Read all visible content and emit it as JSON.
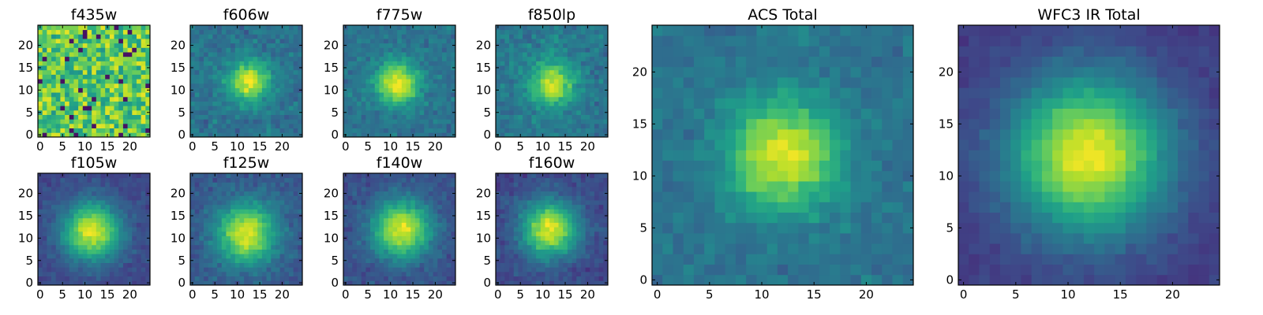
{
  "chart_data": [
    {
      "type": "heatmap",
      "title": "f435w",
      "grid": "25x25",
      "xticks": [
        0,
        5,
        10,
        15,
        20
      ],
      "yticks": [
        0,
        5,
        10,
        15,
        20
      ],
      "xlim": [
        0,
        24
      ],
      "ylim": [
        0,
        24
      ],
      "colormap": "viridis",
      "center": [
        12,
        12
      ],
      "sigma": 4.0,
      "peak_level": 0.72,
      "background_level": 0.75,
      "noise_level": 0.25
    },
    {
      "type": "heatmap",
      "title": "f606w",
      "grid": "25x25",
      "xticks": [
        0,
        5,
        10,
        15,
        20
      ],
      "yticks": [
        0,
        5,
        10,
        15,
        20
      ],
      "xlim": [
        0,
        24
      ],
      "ylim": [
        0,
        24
      ],
      "colormap": "viridis",
      "center": [
        12.5,
        12
      ],
      "sigma": 3.2,
      "peak_level": 0.95,
      "background_level": 0.38,
      "noise_level": 0.14
    },
    {
      "type": "heatmap",
      "title": "f775w",
      "grid": "25x25",
      "xticks": [
        0,
        5,
        10,
        15,
        20
      ],
      "yticks": [
        0,
        5,
        10,
        15,
        20
      ],
      "xlim": [
        0,
        24
      ],
      "ylim": [
        0,
        24
      ],
      "colormap": "viridis",
      "center": [
        11.5,
        11.5
      ],
      "sigma": 3.4,
      "peak_level": 0.97,
      "background_level": 0.38,
      "noise_level": 0.13
    },
    {
      "type": "heatmap",
      "title": "f850lp",
      "grid": "25x25",
      "xticks": [
        0,
        5,
        10,
        15,
        20
      ],
      "yticks": [
        0,
        5,
        10,
        15,
        20
      ],
      "xlim": [
        0,
        24
      ],
      "ylim": [
        0,
        24
      ],
      "colormap": "viridis",
      "center": [
        12,
        11.5
      ],
      "sigma": 3.4,
      "peak_level": 0.93,
      "background_level": 0.4,
      "noise_level": 0.15
    },
    {
      "type": "heatmap",
      "title": "f105w",
      "grid": "25x25",
      "xticks": [
        0,
        5,
        10,
        15,
        20
      ],
      "yticks": [
        0,
        5,
        10,
        15,
        20
      ],
      "xlim": [
        0,
        24
      ],
      "ylim": [
        0,
        24
      ],
      "colormap": "viridis",
      "center": [
        11.5,
        11.5
      ],
      "sigma": 4.5,
      "peak_level": 0.95,
      "background_level": 0.22,
      "noise_level": 0.09
    },
    {
      "type": "heatmap",
      "title": "f125w",
      "grid": "25x25",
      "xticks": [
        0,
        5,
        10,
        15,
        20
      ],
      "yticks": [
        0,
        5,
        10,
        15,
        20
      ],
      "xlim": [
        0,
        24
      ],
      "ylim": [
        0,
        24
      ],
      "colormap": "viridis",
      "center": [
        12,
        11
      ],
      "sigma": 4.6,
      "peak_level": 0.95,
      "background_level": 0.28,
      "noise_level": 0.11
    },
    {
      "type": "heatmap",
      "title": "f140w",
      "grid": "25x25",
      "xticks": [
        0,
        5,
        10,
        15,
        20
      ],
      "yticks": [
        0,
        5,
        10,
        15,
        20
      ],
      "xlim": [
        0,
        24
      ],
      "ylim": [
        0,
        24
      ],
      "colormap": "viridis",
      "center": [
        12.5,
        12
      ],
      "sigma": 4.5,
      "peak_level": 0.95,
      "background_level": 0.25,
      "noise_level": 0.1
    },
    {
      "type": "heatmap",
      "title": "f160w",
      "grid": "25x25",
      "xticks": [
        0,
        5,
        10,
        15,
        20
      ],
      "yticks": [
        0,
        5,
        10,
        15,
        20
      ],
      "xlim": [
        0,
        24
      ],
      "ylim": [
        0,
        24
      ],
      "colormap": "viridis",
      "center": [
        11.5,
        12
      ],
      "sigma": 4.4,
      "peak_level": 0.95,
      "background_level": 0.22,
      "noise_level": 0.1
    },
    {
      "type": "heatmap",
      "title": "ACS Total",
      "grid": "25x25",
      "xticks": [
        0,
        5,
        10,
        15,
        20
      ],
      "yticks": [
        0,
        5,
        10,
        15,
        20
      ],
      "xlim": [
        0,
        24
      ],
      "ylim": [
        0,
        24
      ],
      "colormap": "viridis",
      "center": [
        12,
        12
      ],
      "sigma": 3.6,
      "peak_level": 0.97,
      "background_level": 0.38,
      "noise_level": 0.11
    },
    {
      "type": "heatmap",
      "title": "WFC3 IR Total",
      "grid": "25x25",
      "xticks": [
        0,
        5,
        10,
        15,
        20
      ],
      "yticks": [
        0,
        5,
        10,
        15,
        20
      ],
      "xlim": [
        0,
        24
      ],
      "ylim": [
        0,
        24
      ],
      "colormap": "viridis",
      "center": [
        12,
        12
      ],
      "sigma": 5.2,
      "peak_level": 0.97,
      "background_level": 0.18,
      "noise_level": 0.06
    }
  ],
  "colors": {
    "viridis": [
      "#440154",
      "#482878",
      "#3e4989",
      "#31688e",
      "#26828e",
      "#1f9e89",
      "#35b779",
      "#6ece58",
      "#b5de2b",
      "#fde725"
    ]
  }
}
